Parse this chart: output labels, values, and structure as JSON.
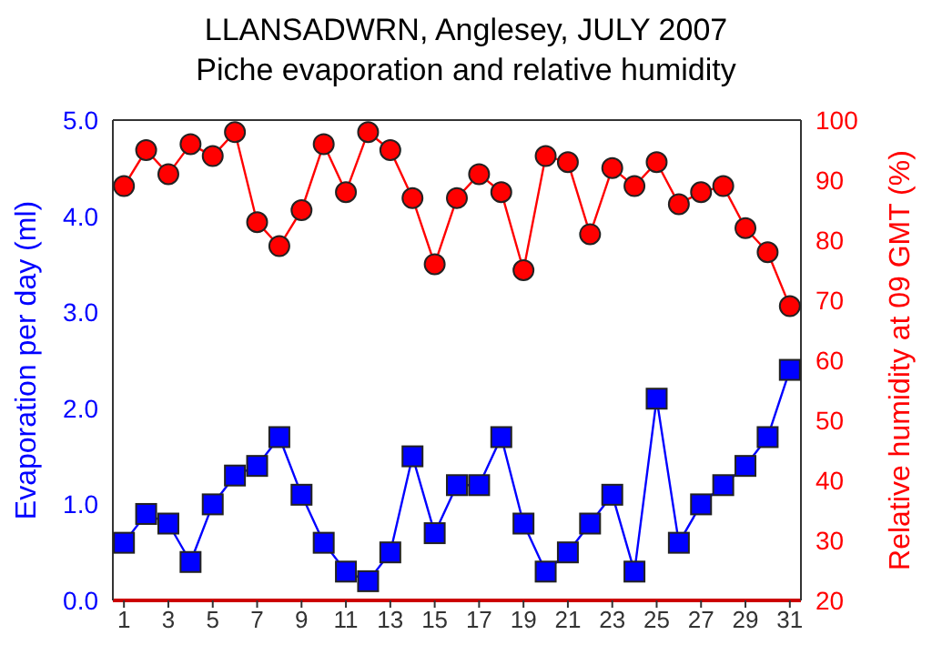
{
  "chart_data": {
    "type": "line",
    "title": "LLANSADWRN, Anglesey, JULY 2007",
    "subtitle": "Piche evaporation and relative humidity",
    "ylabel": "Evaporation per day (ml)",
    "y2label": "Relative humidity at 09 GMT (%)",
    "x": [
      1,
      2,
      3,
      4,
      5,
      6,
      7,
      8,
      9,
      10,
      11,
      12,
      13,
      14,
      15,
      16,
      17,
      18,
      19,
      20,
      21,
      22,
      23,
      24,
      25,
      26,
      27,
      28,
      29,
      30,
      31
    ],
    "xlim": [
      0.5,
      31.5
    ],
    "xticks": [
      1,
      3,
      5,
      7,
      9,
      11,
      13,
      15,
      17,
      19,
      21,
      23,
      25,
      27,
      29,
      31
    ],
    "ylim": [
      0,
      5
    ],
    "yticks": [
      {
        "value": 0,
        "label": "0.0"
      },
      {
        "value": 1,
        "label": "1.0"
      },
      {
        "value": 2,
        "label": "2.0"
      },
      {
        "value": 3,
        "label": "3.0"
      },
      {
        "value": 4,
        "label": "4.0"
      },
      {
        "value": 5,
        "label": "5.0"
      }
    ],
    "y2lim": [
      20,
      100
    ],
    "y2ticks": [
      20,
      30,
      40,
      50,
      60,
      70,
      80,
      90,
      100
    ],
    "grid": false,
    "series": [
      {
        "color": "#0000ff",
        "marker": "square",
        "values": [
          0.6,
          0.9,
          0.8,
          0.4,
          1.0,
          1.3,
          1.4,
          1.7,
          1.1,
          0.6,
          0.3,
          0.2,
          0.5,
          1.5,
          0.7,
          1.2,
          1.2,
          1.7,
          0.8,
          0.3,
          0.5,
          0.8,
          1.1,
          0.3,
          2.1,
          0.6,
          1.0,
          1.2,
          1.4,
          1.7,
          2.4
        ]
      },
      {
        "color": "#ff0000",
        "marker": "circle",
        "axis": "y2",
        "values": [
          89,
          95,
          91,
          96,
          94,
          98,
          83,
          79,
          85,
          96,
          88,
          98,
          95,
          87,
          76,
          87,
          91,
          88,
          75,
          94,
          93,
          81,
          92,
          89,
          93,
          86,
          88,
          89,
          82,
          78,
          69
        ]
      }
    ]
  }
}
